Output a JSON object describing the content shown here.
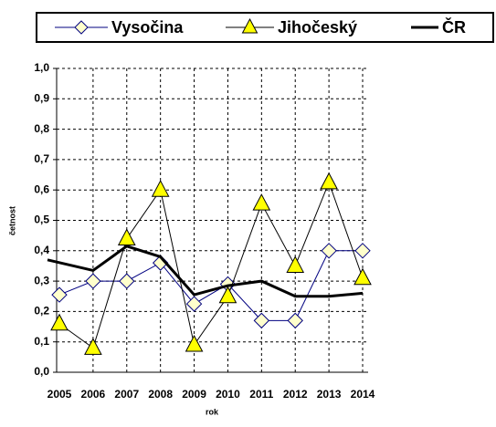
{
  "chart_data": {
    "type": "line",
    "y_label": "četnost",
    "x_label": "rok",
    "categories": [
      "2005",
      "2006",
      "2007",
      "2008",
      "2009",
      "2010",
      "2011",
      "2012",
      "2013",
      "2014"
    ],
    "series": [
      {
        "name": "Vysočina",
        "color": "#000080",
        "marker": "diamond",
        "line_width": 1,
        "values": [
          0.255,
          0.3,
          0.3,
          0.36,
          0.225,
          0.29,
          0.17,
          0.17,
          0.4,
          0.4
        ]
      },
      {
        "name": "Jihočeský",
        "color": "#000000",
        "marker": "triangle",
        "line_width": 1,
        "values": [
          0.16,
          0.08,
          0.44,
          0.6,
          0.09,
          0.25,
          0.555,
          0.35,
          0.625,
          0.31
        ]
      },
      {
        "name": "ČR",
        "color": "#000000",
        "marker": "none",
        "line_width": 3,
        "values": [
          0.37,
          0.335,
          0.415,
          0.38,
          0.255,
          0.285,
          0.3,
          0.25,
          0.25,
          0.26
        ]
      }
    ],
    "ylim": [
      0,
      1
    ],
    "yticks": [
      {
        "value": 0,
        "label": "0,0"
      },
      {
        "value": 0.1,
        "label": "0,1"
      },
      {
        "value": 0.2,
        "label": "0,2"
      },
      {
        "value": 0.3,
        "label": "0,3"
      },
      {
        "value": 0.4,
        "label": "0,4"
      },
      {
        "value": 0.5,
        "label": "0,5"
      },
      {
        "value": 0.6,
        "label": "0,6"
      },
      {
        "value": 0.7,
        "label": "0,7"
      },
      {
        "value": 0.8,
        "label": "0,8"
      },
      {
        "value": 0.9,
        "label": "0,9"
      },
      {
        "value": 1,
        "label": "1,0"
      }
    ],
    "grid": true,
    "legend": "top"
  }
}
